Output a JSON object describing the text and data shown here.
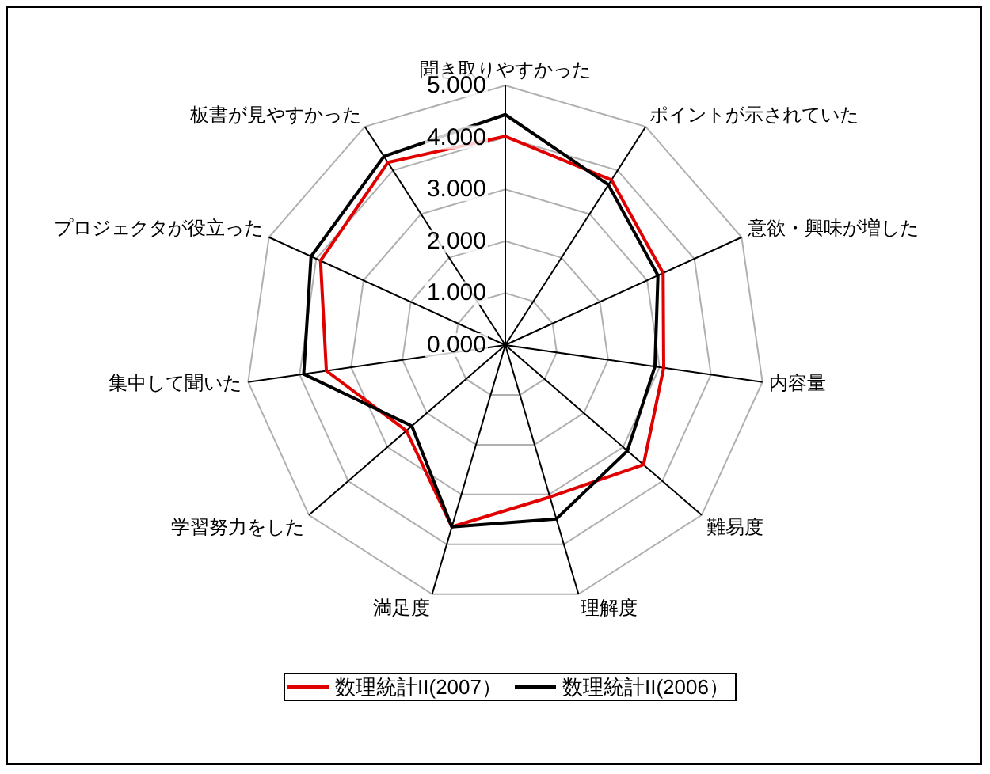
{
  "chart_data": {
    "type": "radar",
    "categories": [
      "聞き取りやすかった",
      "ポイントが示されていた",
      "意欲・興味が増した",
      "内容量",
      "難易度",
      "理解度",
      "満足度",
      "学習努力をした",
      "集中して聞いた",
      "プロジェクタが役立った",
      "板書が見やすかった"
    ],
    "series": [
      {
        "name": "数理統計II(2007）",
        "color": "#e00000",
        "values": [
          4.02,
          3.78,
          3.34,
          3.08,
          3.52,
          3.05,
          3.65,
          2.52,
          3.48,
          3.91,
          4.18
        ]
      },
      {
        "name": "数理統計II(2006）",
        "color": "#000000",
        "values": [
          4.44,
          3.67,
          3.23,
          2.91,
          3.11,
          3.49,
          3.65,
          2.38,
          3.92,
          4.11,
          4.32
        ]
      }
    ],
    "ylim": [
      0,
      5
    ],
    "yticks": [
      {
        "value": 0,
        "label": "0.000"
      },
      {
        "value": 1,
        "label": "1.000"
      },
      {
        "value": 2,
        "label": "2.000"
      },
      {
        "value": 3,
        "label": "3.000"
      },
      {
        "value": 4,
        "label": "4.000"
      },
      {
        "value": 5,
        "label": "5.000"
      }
    ],
    "grid": true,
    "legend": "bottom"
  }
}
